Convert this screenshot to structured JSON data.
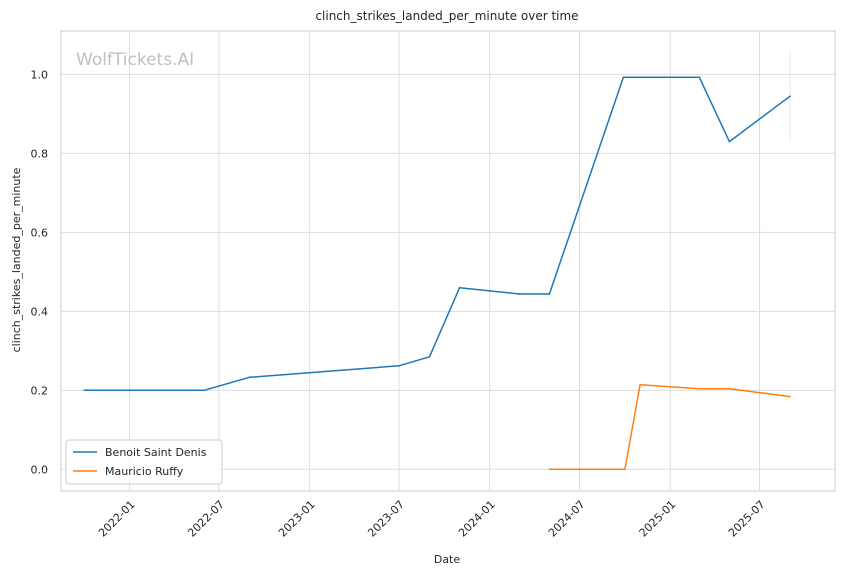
{
  "chart_data": {
    "type": "line",
    "title": "clinch_strikes_landed_per_minute over time",
    "xlabel": "Date",
    "ylabel": "clinch_strikes_landed_per_minute",
    "watermark": "WolfTickets.AI",
    "xlim": [
      "2021-08-15",
      "2025-12-01"
    ],
    "ylim": [
      -0.055,
      1.11
    ],
    "x_ticks": [
      "2022-01",
      "2022-07",
      "2023-01",
      "2023-07",
      "2024-01",
      "2024-07",
      "2025-01",
      "2025-07"
    ],
    "y_ticks": [
      "0.0",
      "0.2",
      "0.4",
      "0.6",
      "0.8",
      "1.0"
    ],
    "grid": true,
    "legend_position": "lower-left",
    "series": [
      {
        "name": "Benoit Saint Denis",
        "color": "#1f77b4",
        "points": [
          {
            "x": "2021-10-01",
            "y": 0.2
          },
          {
            "x": "2022-06-01",
            "y": 0.2
          },
          {
            "x": "2022-09-01",
            "y": 0.233
          },
          {
            "x": "2023-07-01",
            "y": 0.262
          },
          {
            "x": "2023-09-01",
            "y": 0.285
          },
          {
            "x": "2023-11-01",
            "y": 0.46
          },
          {
            "x": "2024-03-01",
            "y": 0.444
          },
          {
            "x": "2024-05-01",
            "y": 0.444
          },
          {
            "x": "2024-09-28",
            "y": 0.993
          },
          {
            "x": "2025-03-01",
            "y": 0.993
          },
          {
            "x": "2025-05-01",
            "y": 0.83
          },
          {
            "x": "2025-09-01",
            "y": 0.945
          }
        ]
      },
      {
        "name": "Mauricio Ruffy",
        "color": "#ff7f0e",
        "points": [
          {
            "x": "2024-05-01",
            "y": 0.0
          },
          {
            "x": "2024-10-01",
            "y": 0.0
          },
          {
            "x": "2024-11-01",
            "y": 0.214
          },
          {
            "x": "2025-03-01",
            "y": 0.204
          },
          {
            "x": "2025-05-01",
            "y": 0.204
          },
          {
            "x": "2025-09-01",
            "y": 0.184
          }
        ]
      }
    ]
  }
}
